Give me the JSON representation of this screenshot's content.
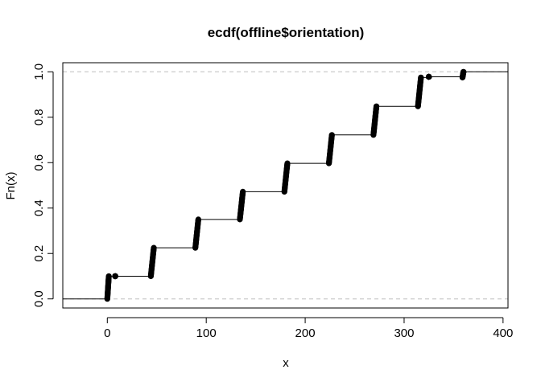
{
  "chart_data": {
    "type": "line",
    "plot_kind": "ecdf",
    "title": "ecdf(offline$orientation)",
    "xlabel": "x",
    "ylabel": "Fn(x)",
    "xlim": [
      -45,
      405
    ],
    "ylim": [
      -0.04,
      1.04
    ],
    "x_ticks": [
      0,
      100,
      200,
      300,
      400
    ],
    "x_tick_labels": [
      "0",
      "100",
      "200",
      "300",
      "400"
    ],
    "y_ticks": [
      0.0,
      0.2,
      0.4,
      0.6,
      0.8,
      1.0
    ],
    "y_tick_labels": [
      "0.0",
      "0.2",
      "0.4",
      "0.6",
      "0.8",
      "1.0"
    ],
    "grid": false,
    "reference_lines": [
      0,
      1
    ],
    "steps": [
      {
        "x_start": -45,
        "x_end": 0,
        "y": 0.0
      },
      {
        "x_start": 0,
        "x_end": 0.5,
        "y": 0.02
      },
      {
        "x_start": 0.5,
        "x_end": 1,
        "y": 0.05
      },
      {
        "x_start": 1,
        "x_end": 1.5,
        "y": 0.08
      },
      {
        "x_start": 1.5,
        "x_end": 8.5,
        "y": 0.1
      },
      {
        "x_start": 8.5,
        "x_end": 44,
        "y": 0.1
      },
      {
        "x_start": 44,
        "x_end": 45,
        "y": 0.13
      },
      {
        "x_start": 45,
        "x_end": 46,
        "y": 0.17
      },
      {
        "x_start": 46,
        "x_end": 47,
        "y": 0.2
      },
      {
        "x_start": 47,
        "x_end": 89,
        "y": 0.225
      },
      {
        "x_start": 89,
        "x_end": 90,
        "y": 0.26
      },
      {
        "x_start": 90,
        "x_end": 91,
        "y": 0.3
      },
      {
        "x_start": 91,
        "x_end": 92,
        "y": 0.33
      },
      {
        "x_start": 92,
        "x_end": 134,
        "y": 0.35
      },
      {
        "x_start": 134,
        "x_end": 135,
        "y": 0.39
      },
      {
        "x_start": 135,
        "x_end": 136,
        "y": 0.42
      },
      {
        "x_start": 136,
        "x_end": 137,
        "y": 0.45
      },
      {
        "x_start": 137,
        "x_end": 179,
        "y": 0.472
      },
      {
        "x_start": 179,
        "x_end": 180,
        "y": 0.51
      },
      {
        "x_start": 180,
        "x_end": 181,
        "y": 0.55
      },
      {
        "x_start": 181,
        "x_end": 182,
        "y": 0.58
      },
      {
        "x_start": 182,
        "x_end": 224,
        "y": 0.597
      },
      {
        "x_start": 224,
        "x_end": 225,
        "y": 0.63
      },
      {
        "x_start": 225,
        "x_end": 226,
        "y": 0.67
      },
      {
        "x_start": 226,
        "x_end": 227,
        "y": 0.7
      },
      {
        "x_start": 227,
        "x_end": 269,
        "y": 0.722
      },
      {
        "x_start": 269,
        "x_end": 270,
        "y": 0.76
      },
      {
        "x_start": 270,
        "x_end": 271,
        "y": 0.8
      },
      {
        "x_start": 271,
        "x_end": 272,
        "y": 0.83
      },
      {
        "x_start": 272,
        "x_end": 314,
        "y": 0.848
      },
      {
        "x_start": 314,
        "x_end": 315,
        "y": 0.88
      },
      {
        "x_start": 315,
        "x_end": 316,
        "y": 0.92
      },
      {
        "x_start": 316,
        "x_end": 317,
        "y": 0.96
      },
      {
        "x_start": 317,
        "x_end": 325,
        "y": 0.975
      },
      {
        "x_start": 325,
        "x_end": 359,
        "y": 0.978
      },
      {
        "x_start": 359,
        "x_end": 360,
        "y": 0.99
      },
      {
        "x_start": 360,
        "x_end": 405,
        "y": 1.0
      }
    ],
    "jump_clusters": [
      {
        "x_from": 0,
        "x_to": 1.5,
        "y_from": 0.0,
        "y_to": 0.1
      },
      {
        "x_from": 8,
        "x_to": 8,
        "y_from": 0.1,
        "y_to": 0.1
      },
      {
        "x_from": 44,
        "x_to": 47,
        "y_from": 0.1,
        "y_to": 0.225
      },
      {
        "x_from": 89,
        "x_to": 92,
        "y_from": 0.225,
        "y_to": 0.35
      },
      {
        "x_from": 134,
        "x_to": 137,
        "y_from": 0.35,
        "y_to": 0.472
      },
      {
        "x_from": 179,
        "x_to": 182,
        "y_from": 0.472,
        "y_to": 0.597
      },
      {
        "x_from": 224,
        "x_to": 227,
        "y_from": 0.597,
        "y_to": 0.722
      },
      {
        "x_from": 269,
        "x_to": 272,
        "y_from": 0.722,
        "y_to": 0.848
      },
      {
        "x_from": 314,
        "x_to": 317,
        "y_from": 0.848,
        "y_to": 0.975
      },
      {
        "x_from": 325,
        "x_to": 325,
        "y_from": 0.978,
        "y_to": 0.978
      },
      {
        "x_from": 359,
        "x_to": 360,
        "y_from": 0.975,
        "y_to": 1.0
      }
    ],
    "colors": {
      "step": "#000000",
      "points": "#000000",
      "reference": "#bebebe"
    }
  }
}
